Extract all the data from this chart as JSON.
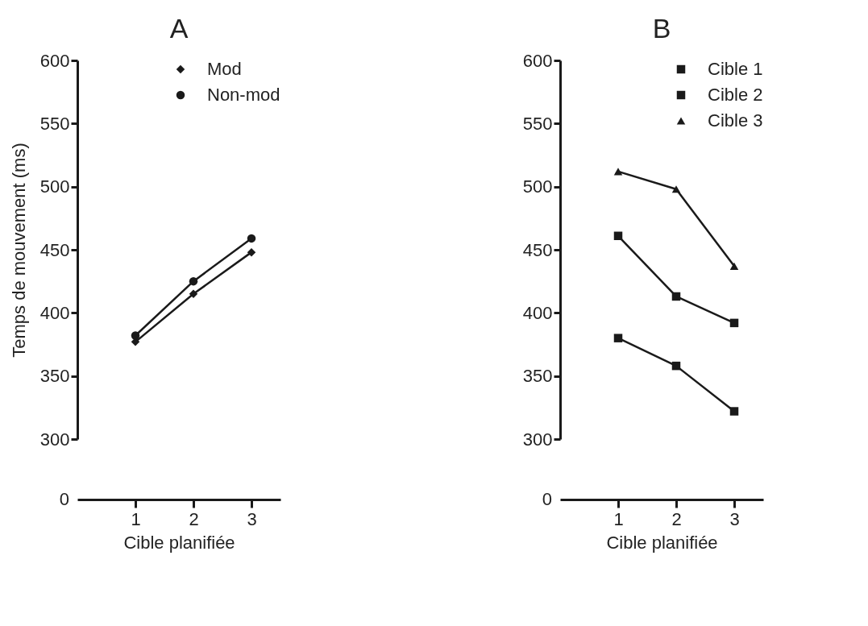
{
  "chart_data": [
    {
      "type": "line",
      "title": "A",
      "xlabel": "Cible planifiée",
      "ylabel": "Temps de mouvement (ms)",
      "annotations": [
        "0"
      ],
      "x": [
        1,
        2,
        3
      ],
      "xlim": [
        0,
        3.5
      ],
      "xticks": [
        1,
        2,
        3
      ],
      "ylim": [
        300,
        600
      ],
      "yticks": [
        300,
        350,
        400,
        450,
        500,
        550,
        600
      ],
      "grid": false,
      "legend": "top right",
      "series": [
        {
          "name": "Mod",
          "color": "#1a1a1a",
          "marker": "diamond",
          "values": [
            377,
            415,
            448
          ]
        },
        {
          "name": "Non-mod",
          "color": "#1a1a1a",
          "marker": "circle",
          "values": [
            382,
            425,
            459
          ]
        }
      ]
    },
    {
      "type": "line",
      "title": "B",
      "xlabel": "Cible planifiée",
      "annotations": [
        "0"
      ],
      "x": [
        1,
        2,
        3
      ],
      "xlim": [
        0,
        3.5
      ],
      "xticks": [
        1,
        2,
        3
      ],
      "ylim": [
        300,
        600
      ],
      "yticks": [
        300,
        350,
        400,
        450,
        500,
        550,
        600
      ],
      "grid": false,
      "legend": "top right",
      "series": [
        {
          "name": "Cible 1",
          "color": "#1a1a1a",
          "marker": "square",
          "values": [
            380,
            358,
            322
          ]
        },
        {
          "name": "Cible 2",
          "color": "#1a1a1a",
          "marker": "square",
          "values": [
            461,
            413,
            392
          ]
        },
        {
          "name": "Cible 3",
          "color": "#1a1a1a",
          "marker": "triangle",
          "values": [
            512,
            498,
            437
          ]
        }
      ]
    }
  ]
}
